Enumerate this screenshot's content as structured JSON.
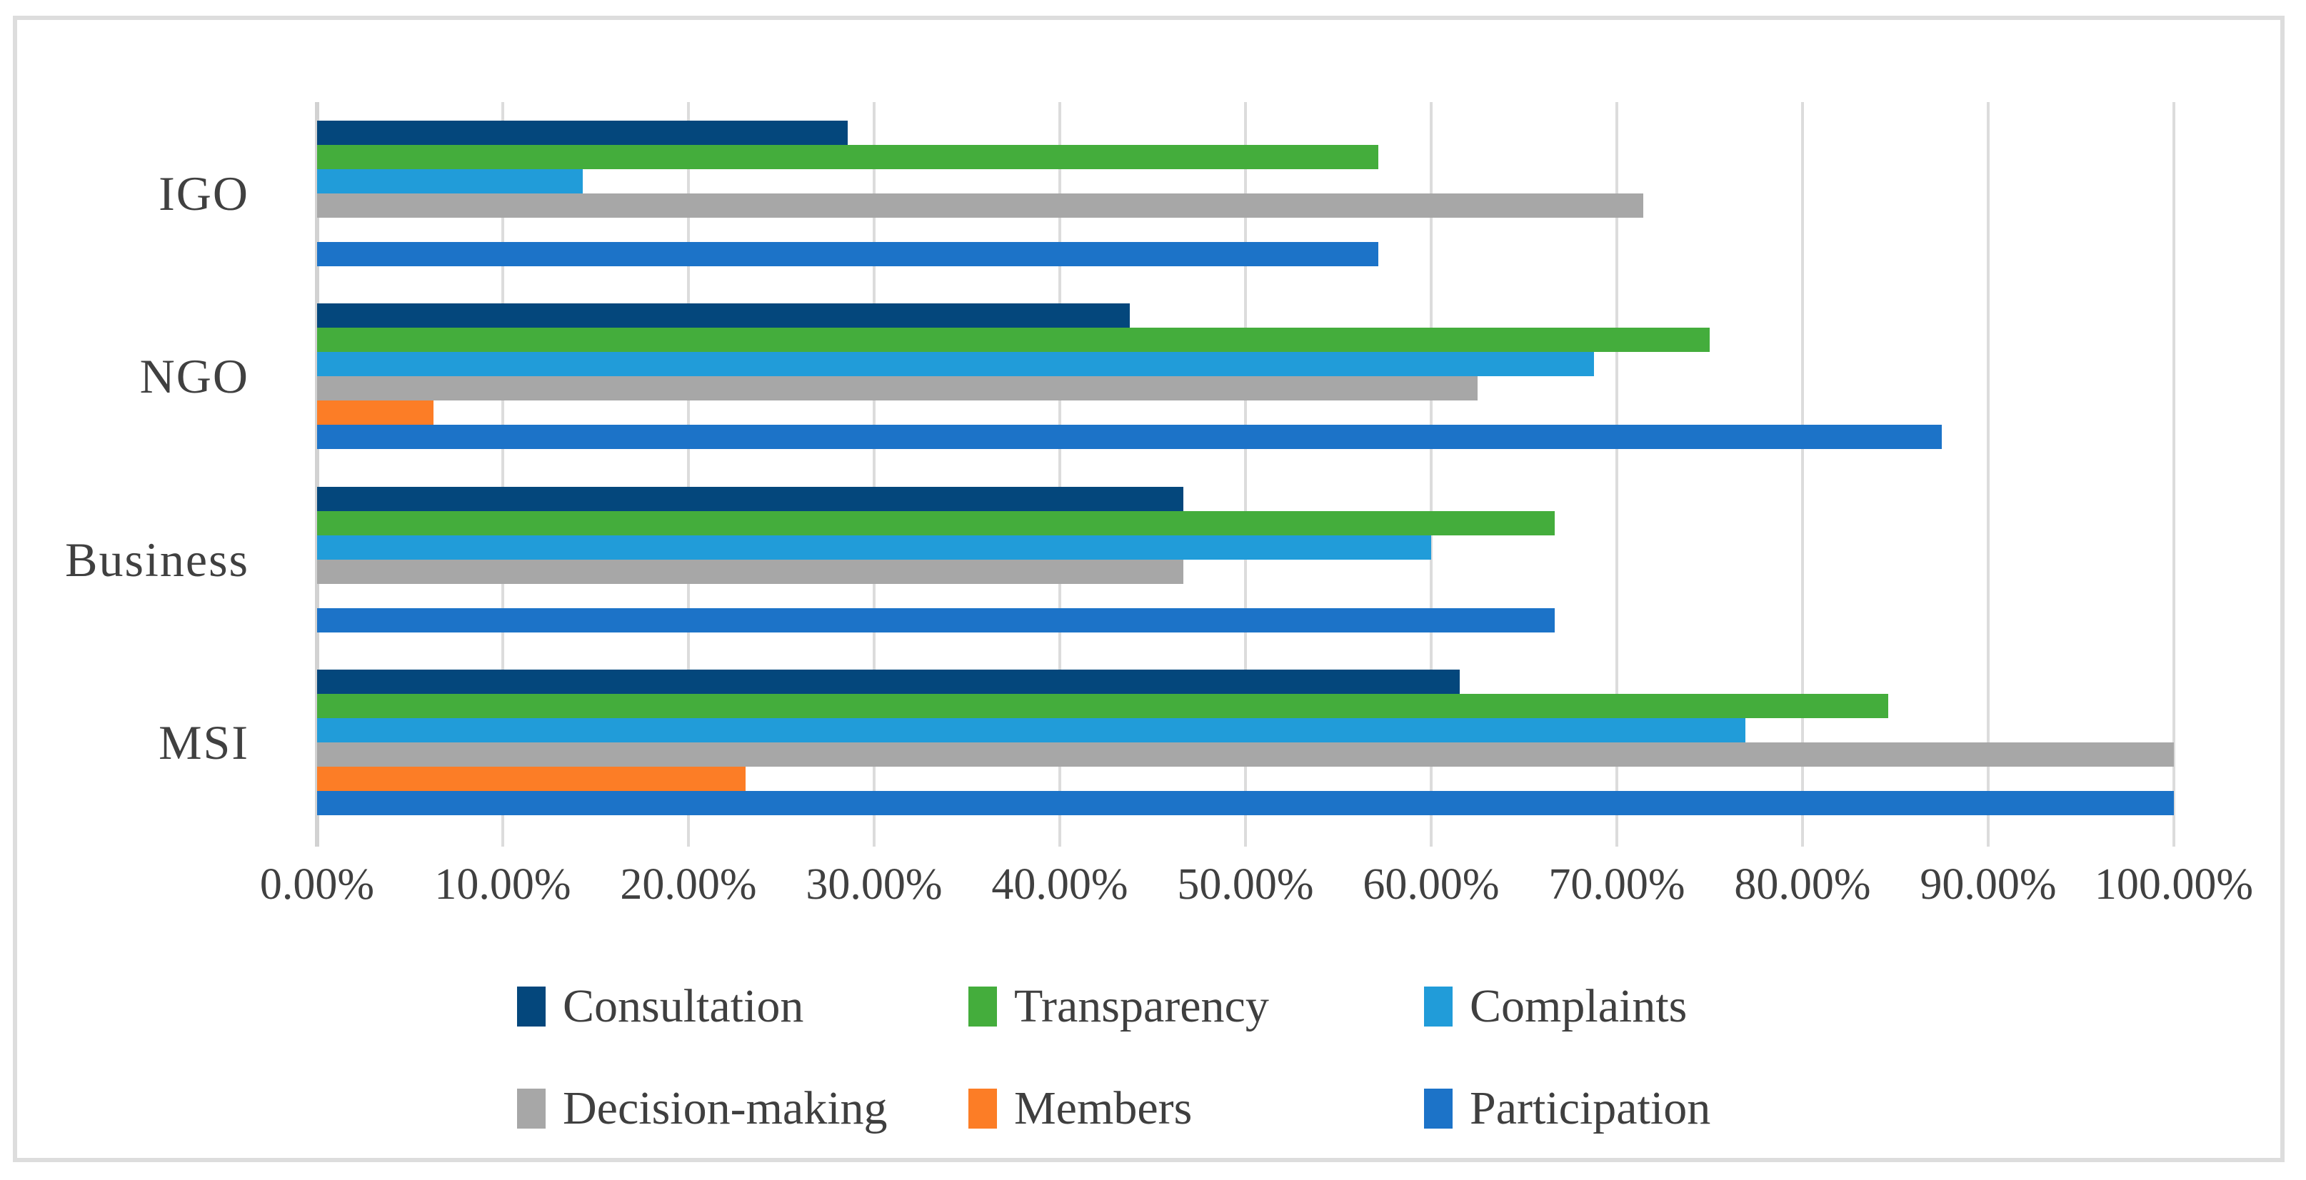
{
  "chart_data": {
    "type": "bar",
    "orientation": "horizontal",
    "title": "",
    "xlabel": "",
    "ylabel": "",
    "categories": [
      "IGO",
      "NGO",
      "Business",
      "MSI"
    ],
    "series": [
      {
        "name": "Consultation",
        "color": "#04477C",
        "values": [
          28.57,
          43.75,
          46.67,
          61.54
        ]
      },
      {
        "name": "Transparency",
        "color": "#44AD3C",
        "values": [
          57.14,
          75.0,
          66.67,
          84.62
        ]
      },
      {
        "name": "Complaints",
        "color": "#219CD9",
        "values": [
          14.29,
          68.75,
          60.0,
          76.92
        ]
      },
      {
        "name": "Decision-making",
        "color": "#A7A7A7",
        "values": [
          71.43,
          62.5,
          46.67,
          100.0
        ]
      },
      {
        "name": "Members",
        "color": "#FC7D26",
        "values": [
          0.0,
          6.25,
          0.0,
          23.08
        ]
      },
      {
        "name": "Participation",
        "color": "#1C73C8",
        "values": [
          57.14,
          87.5,
          66.67,
          100.0
        ]
      }
    ],
    "xlim": [
      0,
      100
    ],
    "x_tick_values": [
      0,
      10,
      20,
      30,
      40,
      50,
      60,
      70,
      80,
      90,
      100
    ],
    "x_ticks": [
      "0.00%",
      "10.00%",
      "20.00%",
      "30.00%",
      "40.00%",
      "50.00%",
      "60.00%",
      "70.00%",
      "80.00%",
      "90.00%",
      "100.00%"
    ],
    "grid": true,
    "gridline_color": "#DCDCDC",
    "axis_text_color": "#404040",
    "legend_position": "bottom",
    "legend_rows": [
      [
        "Consultation",
        "Transparency",
        "Complaints"
      ],
      [
        "Decision-making",
        "Members",
        "Participation"
      ]
    ]
  }
}
